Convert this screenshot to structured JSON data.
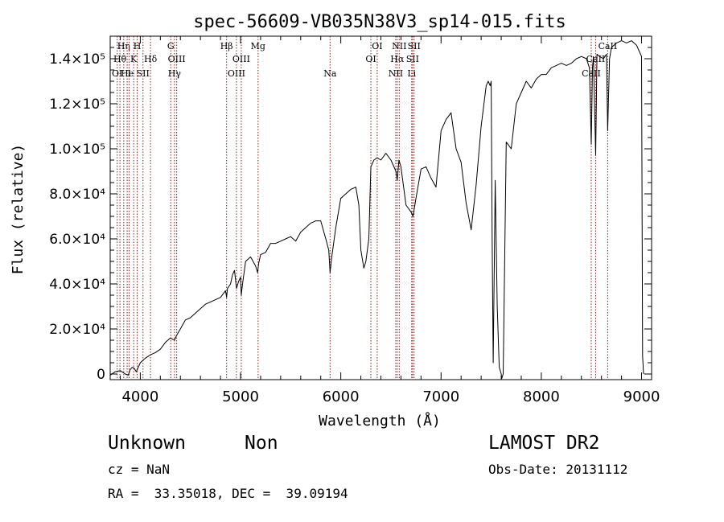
{
  "chart_data": {
    "type": "line",
    "title": "spec-56609-VB035N38V3_sp14-015.fits",
    "xlabel": "Wavelength (Å)",
    "ylabel": "Flux (relative)",
    "xlim": [
      3700,
      9100
    ],
    "ylim": [
      -2500,
      150000
    ],
    "x_ticks": [
      4000,
      5000,
      6000,
      7000,
      8000,
      9000
    ],
    "y_ticks": [
      {
        "value": 0,
        "label": "0"
      },
      {
        "value": 20000,
        "label": "2.0×10⁴"
      },
      {
        "value": 40000,
        "label": "4.0×10⁴"
      },
      {
        "value": 60000,
        "label": "6.0×10⁴"
      },
      {
        "value": 80000,
        "label": "8.0×10⁴"
      },
      {
        "value": 100000,
        "label": "1.0×10⁵"
      },
      {
        "value": 120000,
        "label": "1.2×10⁵"
      },
      {
        "value": 140000,
        "label": "1.4×10⁵"
      }
    ],
    "grid": false,
    "line_color": "#000000",
    "marker_color": "#8b1a1a",
    "spectrum": {
      "x": [
        3700,
        3750,
        3800,
        3850,
        3880,
        3900,
        3920,
        3940,
        3960,
        3980,
        4000,
        4050,
        4100,
        4150,
        4200,
        4250,
        4300,
        4340,
        4360,
        4400,
        4450,
        4500,
        4550,
        4600,
        4650,
        4700,
        4750,
        4800,
        4850,
        4861,
        4870,
        4900,
        4920,
        4940,
        4960,
        4980,
        5000,
        5007,
        5020,
        5050,
        5100,
        5150,
        5170,
        5180,
        5200,
        5250,
        5300,
        5350,
        5400,
        5450,
        5500,
        5550,
        5600,
        5650,
        5700,
        5750,
        5800,
        5850,
        5880,
        5893,
        5910,
        5950,
        6000,
        6050,
        6100,
        6150,
        6180,
        6200,
        6230,
        6250,
        6280,
        6300,
        6330,
        6363,
        6400,
        6450,
        6500,
        6550,
        6563,
        6580,
        6600,
        6650,
        6700,
        6720,
        6750,
        6800,
        6850,
        6900,
        6950,
        7000,
        7050,
        7100,
        7150,
        7200,
        7250,
        7300,
        7350,
        7400,
        7450,
        7470,
        7490,
        7500,
        7510,
        7520,
        7540,
        7560,
        7580,
        7600,
        7605,
        7620,
        7650,
        7700,
        7750,
        7800,
        7850,
        7900,
        7950,
        8000,
        8050,
        8100,
        8150,
        8200,
        8250,
        8300,
        8350,
        8400,
        8450,
        8480,
        8498,
        8510,
        8520,
        8542,
        8555,
        8580,
        8620,
        8650,
        8662,
        8680,
        8700,
        8750,
        8800,
        8850,
        8900,
        8950,
        9000,
        9010,
        9020
      ],
      "y": [
        -500,
        1000,
        1500,
        0,
        -500,
        2000,
        3000,
        2500,
        1000,
        3000,
        5000,
        7000,
        8500,
        9500,
        11000,
        14000,
        16000,
        15000,
        17000,
        20000,
        24000,
        25000,
        27000,
        29000,
        31000,
        32000,
        33000,
        34000,
        37000,
        34000,
        38000,
        40000,
        44000,
        46000,
        38000,
        41000,
        43000,
        35000,
        40000,
        50000,
        52000,
        48000,
        45000,
        49000,
        53000,
        54000,
        58000,
        58000,
        59000,
        60000,
        61000,
        59000,
        63000,
        65000,
        67000,
        68000,
        68000,
        60000,
        55000,
        45000,
        52000,
        65000,
        78000,
        80000,
        82000,
        83000,
        75000,
        55000,
        47000,
        50000,
        60000,
        92000,
        95000,
        96000,
        95000,
        98000,
        95000,
        90000,
        86000,
        95000,
        92000,
        75000,
        72000,
        70000,
        78000,
        91000,
        92000,
        87000,
        83000,
        108000,
        113000,
        116000,
        100000,
        94000,
        76000,
        64000,
        84000,
        110000,
        128000,
        130000,
        128000,
        130000,
        60000,
        5000,
        86000,
        30000,
        3000,
        0,
        -2000,
        0,
        103000,
        100000,
        120000,
        125000,
        130000,
        127000,
        131000,
        133000,
        133000,
        136000,
        137000,
        138000,
        137000,
        138000,
        140000,
        141000,
        140000,
        136000,
        102000,
        136000,
        141000,
        97000,
        142000,
        141000,
        140000,
        142000,
        108000,
        140000,
        145000,
        147000,
        148000,
        147000,
        148000,
        146000,
        141000,
        8000,
        0
      ]
    },
    "lines": [
      {
        "x": 3770,
        "row": 3,
        "label": "OI"
      },
      {
        "x": 3797,
        "row": 2,
        "label": "Hθ"
      },
      {
        "x": 3835,
        "row": 1,
        "label": "Hη"
      },
      {
        "x": 3869,
        "row": 3,
        "label": "He"
      },
      {
        "x": 3889,
        "row": 3,
        "label": "I"
      },
      {
        "x": 3934,
        "row": 2,
        "label": "K"
      },
      {
        "x": 3969,
        "row": 1,
        "label": "H"
      },
      {
        "x": 4027,
        "row": 3,
        "label": "SII"
      },
      {
        "x": 4102,
        "row": 2,
        "label": "Hδ"
      },
      {
        "x": 4304,
        "row": 1,
        "label": "G"
      },
      {
        "x": 4341,
        "row": 3,
        "label": "Hγ"
      },
      {
        "x": 4363,
        "row": 2,
        "label": "OIII"
      },
      {
        "x": 4861,
        "row": 1,
        "label": "Hβ"
      },
      {
        "x": 4959,
        "row": 3,
        "label": "OIII"
      },
      {
        "x": 5007,
        "row": 2,
        "label": "OIII"
      },
      {
        "x": 5175,
        "row": 1,
        "label": "Mg"
      },
      {
        "x": 5893,
        "row": 3,
        "label": "Na"
      },
      {
        "x": 6300,
        "row": 2,
        "label": "OI"
      },
      {
        "x": 6363,
        "row": 1,
        "label": "OI"
      },
      {
        "x": 6548,
        "row": 3,
        "label": "NII"
      },
      {
        "x": 6563,
        "row": 2,
        "label": "Hα"
      },
      {
        "x": 6583,
        "row": 1,
        "label": "NII"
      },
      {
        "x": 6707,
        "row": 3,
        "label": "Li"
      },
      {
        "x": 6716,
        "row": 2,
        "label": "SII"
      },
      {
        "x": 6731,
        "row": 1,
        "label": "SII"
      },
      {
        "x": 8498,
        "row": 3,
        "label": "CaII"
      },
      {
        "x": 8542,
        "row": 2,
        "label": "CaII"
      },
      {
        "x": 8662,
        "row": 1,
        "label": "CaII"
      }
    ]
  },
  "info": {
    "object_class": "Unknown",
    "subclass": "Non",
    "survey": "LAMOST DR2",
    "cz": "cz = NaN",
    "obs_date": "Obs-Date: 20131112",
    "coords": "RA =  33.35018, DEC =  39.09194"
  }
}
